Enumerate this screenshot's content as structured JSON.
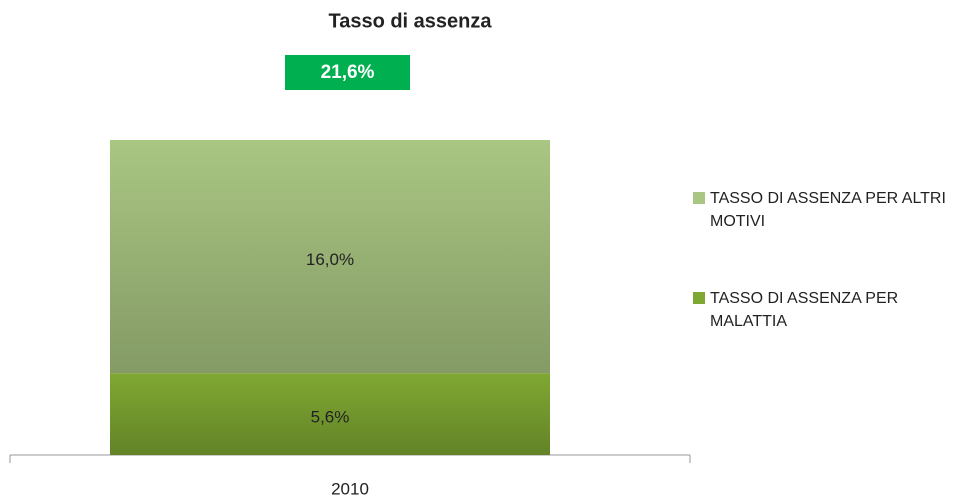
{
  "chart_data": {
    "type": "stacked_bar",
    "title": "Tasso di assenza",
    "categories": [
      "2010"
    ],
    "series": [
      {
        "name": "TASSO DI ASSENZA PER MALATTIA",
        "color": "#7fa832",
        "values": [
          5.6
        ],
        "value_labels": [
          "5,6%"
        ]
      },
      {
        "name": "TASSO DI ASSENZA PER ALTRI MOTIVI",
        "color": "#a9c682",
        "values": [
          16.0
        ],
        "value_labels": [
          "16,0%"
        ]
      }
    ],
    "totals": [
      21.6
    ],
    "total_labels": [
      "21,6%"
    ],
    "total_color": "#00b050",
    "ylim": [
      0,
      21.6
    ],
    "legend": "right"
  }
}
